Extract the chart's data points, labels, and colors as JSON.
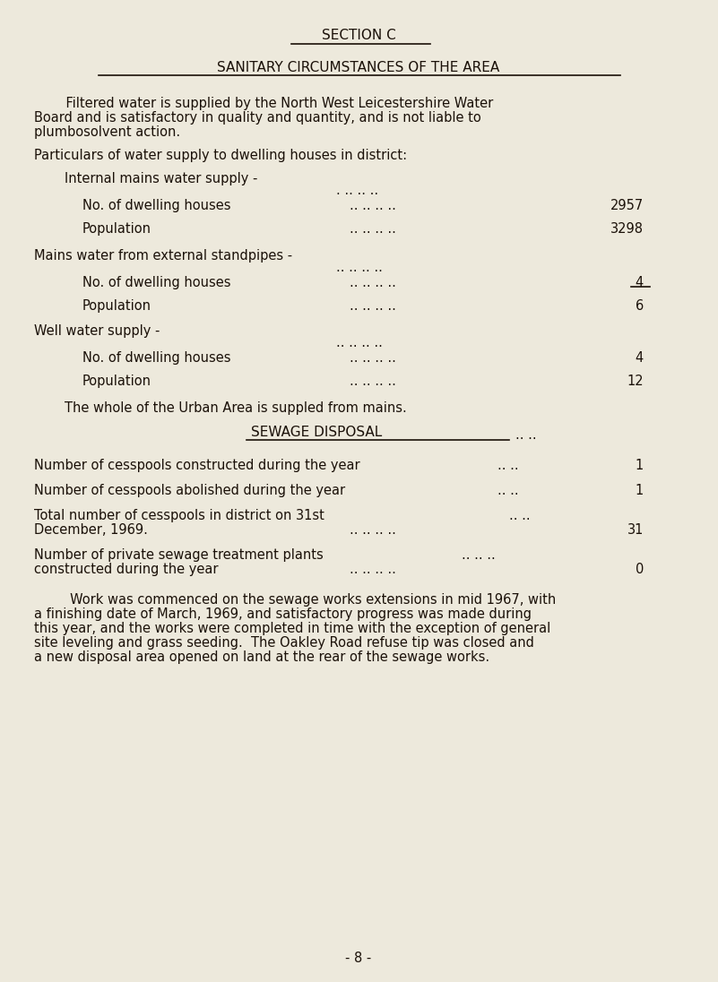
{
  "bg_color": "#ede9dc",
  "text_color": "#1a1008",
  "title1": "SECTION C",
  "title2": "SANITARY CIRCUMSTANCES OF THE AREA",
  "dots_header_single": ". .. .. ..",
  "dots_double": ".. .. .. ..",
  "dots_half": ".. ..",
  "dots_triple": ".. .. ..",
  "internal_header": "Internal mains water supply -",
  "internal_row1_label": "No. of dwelling houses",
  "internal_row1_val": "2957",
  "internal_row2_label": "Population",
  "internal_row2_val": "3298",
  "mains_header": "Mains water from external standpipes -",
  "mains_row1_label": "No. of dwelling houses",
  "mains_row1_val": "4",
  "mains_row2_label": "Population",
  "mains_row2_val": "6",
  "well_header": "Well water supply -",
  "well_row1_label": "No. of dwelling houses",
  "well_row1_val": "4",
  "well_row2_label": "Population",
  "well_row2_val": "12",
  "mains_summary": "The whole of the Urban Area is suppled from mains.",
  "sewage_title": "SEWAGE DISPOSAL",
  "sewage_row1_label": "Number of cesspools constructed during the year",
  "sewage_row1_val": "1",
  "sewage_row2_label": "Number of cesspools abolished during the year",
  "sewage_row2_val": "1",
  "sewage_row3_label1": "Total number of cesspools in district on 31st",
  "sewage_row3_label2": "December, 1969.",
  "sewage_row3_val": "31",
  "sewage_row4_label1": "Number of private sewage treatment plants",
  "sewage_row4_label2": "constructed during the year",
  "sewage_row4_val": "0",
  "para1_line1": "    Filtered water is supplied by the North West Leicestershire Water",
  "para1_line2": "Board and is satisfactory in quality and quantity, and is not liable to",
  "para1_line3": "plumbosolvent action.",
  "particulars": "Particulars of water supply to dwelling houses in district:",
  "para_final_line1": "     Work was commenced on the sewage works extensions in mid 1967, with",
  "para_final_line2": "a finishing date of March, 1969, and satisfactory progress was made during",
  "para_final_line3": "this year, and the works were completed in time with the exception of general",
  "para_final_line4": "site leveling and grass seeding.  The Oakley Road refuse tip was closed and",
  "para_final_line5": "a new disposal area opened on land at the rear of the sewage works.",
  "footer": "- 8 -"
}
